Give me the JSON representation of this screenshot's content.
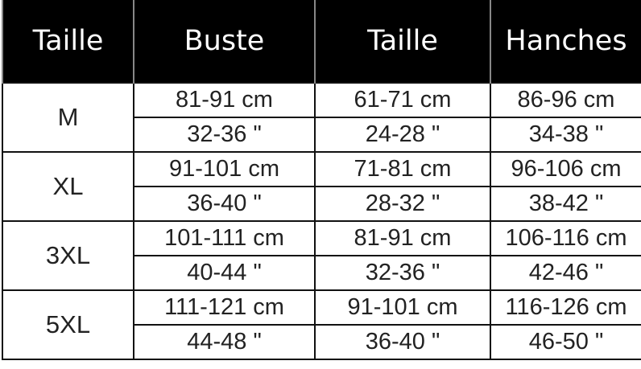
{
  "headers": [
    "Taille",
    "Buste",
    "Taille",
    "Hanches"
  ],
  "rows": [
    {
      "size": "M",
      "cm": [
        "81-91 cm",
        "61-71 cm",
        "86-96 cm"
      ],
      "in": [
        "32-36 \"",
        "24-28 \"",
        "34-38 \""
      ]
    },
    {
      "size": "XL",
      "cm": [
        "91-101 cm",
        "71-81 cm",
        "96-106 cm"
      ],
      "in": [
        "36-40 \"",
        "28-32 \"",
        "38-42 \""
      ]
    },
    {
      "size": "3XL",
      "cm": [
        "101-111 cm",
        "81-91 cm",
        "106-116 cm"
      ],
      "in": [
        "40-44 \"",
        "32-36 \"",
        "42-46 \""
      ]
    },
    {
      "size": "5XL",
      "cm": [
        "111-121 cm",
        "91-101 cm",
        "116-126 cm"
      ],
      "in": [
        "44-48 \"",
        "36-40 \"",
        "46-50 \""
      ]
    }
  ],
  "colors": {
    "header_bg": "#000000",
    "header_text": "#ffffff"
  }
}
